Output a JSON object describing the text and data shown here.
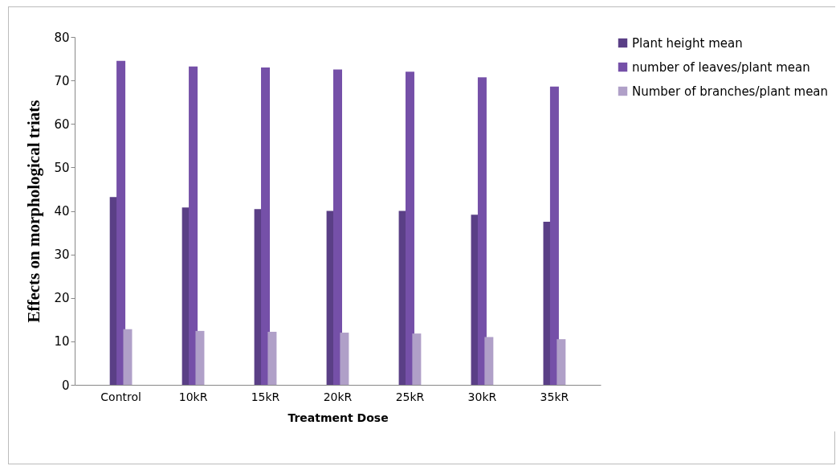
{
  "chart_data": {
    "type": "bar",
    "xlabel": "Treatment Dose",
    "ylabel": "Effects on morphological triats",
    "categories": [
      "Control",
      "10kR",
      "15kR",
      "20kR",
      "25kR",
      "30kR",
      "35kR"
    ],
    "series": [
      {
        "name": "Plant height mean",
        "color": "#5a3f86",
        "values": [
          43.2,
          40.8,
          40.4,
          40,
          40,
          39.1,
          37.5
        ]
      },
      {
        "name": "number of leaves/plant mean",
        "color": "#7550a8",
        "values": [
          74.5,
          73.2,
          73,
          72.5,
          72,
          70.7,
          68.6
        ]
      },
      {
        "name": "Number of branches/plant mean",
        "color": "#b0a0c8",
        "values": [
          12.8,
          12.4,
          12.2,
          12,
          11.8,
          11,
          10.5
        ]
      }
    ],
    "ylim": [
      0,
      80
    ],
    "yticks": [
      0,
      10,
      20,
      30,
      40,
      50,
      60,
      70,
      80
    ],
    "grid": false,
    "legend": "right"
  }
}
